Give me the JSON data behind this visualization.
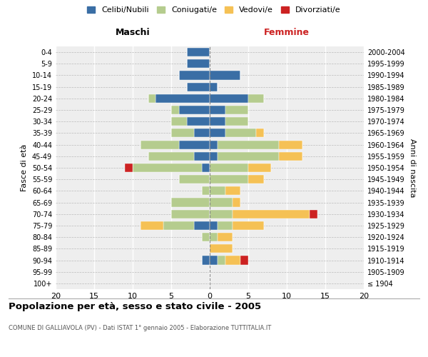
{
  "age_groups": [
    "100+",
    "95-99",
    "90-94",
    "85-89",
    "80-84",
    "75-79",
    "70-74",
    "65-69",
    "60-64",
    "55-59",
    "50-54",
    "45-49",
    "40-44",
    "35-39",
    "30-34",
    "25-29",
    "20-24",
    "15-19",
    "10-14",
    "5-9",
    "0-4"
  ],
  "birth_years": [
    "≤ 1904",
    "1905-1909",
    "1910-1914",
    "1915-1919",
    "1920-1924",
    "1925-1929",
    "1930-1934",
    "1935-1939",
    "1940-1944",
    "1945-1949",
    "1950-1954",
    "1955-1959",
    "1960-1964",
    "1965-1969",
    "1970-1974",
    "1975-1979",
    "1980-1984",
    "1985-1989",
    "1990-1994",
    "1995-1999",
    "2000-2004"
  ],
  "males": {
    "celibi": [
      0,
      0,
      1,
      0,
      0,
      2,
      0,
      0,
      0,
      0,
      1,
      2,
      4,
      2,
      3,
      4,
      7,
      3,
      4,
      3,
      3
    ],
    "coniugati": [
      0,
      0,
      0,
      0,
      1,
      4,
      5,
      5,
      1,
      4,
      9,
      6,
      5,
      3,
      2,
      1,
      1,
      0,
      0,
      0,
      0
    ],
    "vedovi": [
      0,
      0,
      0,
      0,
      0,
      3,
      0,
      0,
      0,
      0,
      0,
      0,
      0,
      0,
      0,
      0,
      0,
      0,
      0,
      0,
      0
    ],
    "divorziati": [
      0,
      0,
      0,
      0,
      0,
      0,
      0,
      0,
      0,
      0,
      1,
      0,
      0,
      0,
      0,
      0,
      0,
      0,
      0,
      0,
      0
    ]
  },
  "females": {
    "nubili": [
      0,
      0,
      1,
      0,
      0,
      1,
      0,
      0,
      0,
      0,
      0,
      1,
      1,
      2,
      2,
      2,
      5,
      1,
      4,
      0,
      0
    ],
    "coniugate": [
      0,
      0,
      1,
      0,
      1,
      2,
      3,
      3,
      2,
      5,
      5,
      8,
      8,
      4,
      3,
      3,
      2,
      0,
      0,
      0,
      0
    ],
    "vedove": [
      0,
      0,
      2,
      3,
      2,
      4,
      10,
      1,
      2,
      2,
      3,
      3,
      3,
      1,
      0,
      0,
      0,
      0,
      0,
      0,
      0
    ],
    "divorziate": [
      0,
      0,
      1,
      0,
      0,
      0,
      1,
      0,
      0,
      0,
      0,
      0,
      0,
      0,
      0,
      0,
      0,
      0,
      0,
      0,
      0
    ]
  },
  "colors": {
    "celibi_nubili": "#3a6ea5",
    "coniugati": "#b5cc8e",
    "vedovi": "#f5c155",
    "divorziati": "#cc2222"
  },
  "xlim": [
    -20,
    20
  ],
  "xticks": [
    -20,
    -15,
    -10,
    -5,
    0,
    5,
    10,
    15,
    20
  ],
  "xticklabels": [
    "20",
    "15",
    "10",
    "5",
    "0",
    "5",
    "10",
    "15",
    "20"
  ],
  "title": "Popolazione per età, sesso e stato civile - 2005",
  "subtitle": "COMUNE DI GALLIAVOLA (PV) - Dati ISTAT 1° gennaio 2005 - Elaborazione TUTTITALIA.IT",
  "ylabel_left": "Fasce di età",
  "ylabel_right": "Anni di nascita",
  "legend_labels": [
    "Celibi/Nubili",
    "Coniugati/e",
    "Vedovi/e",
    "Divorziati/e"
  ],
  "maschi_label": "Maschi",
  "femmine_label": "Femmine",
  "background_color": "#eeeeee"
}
